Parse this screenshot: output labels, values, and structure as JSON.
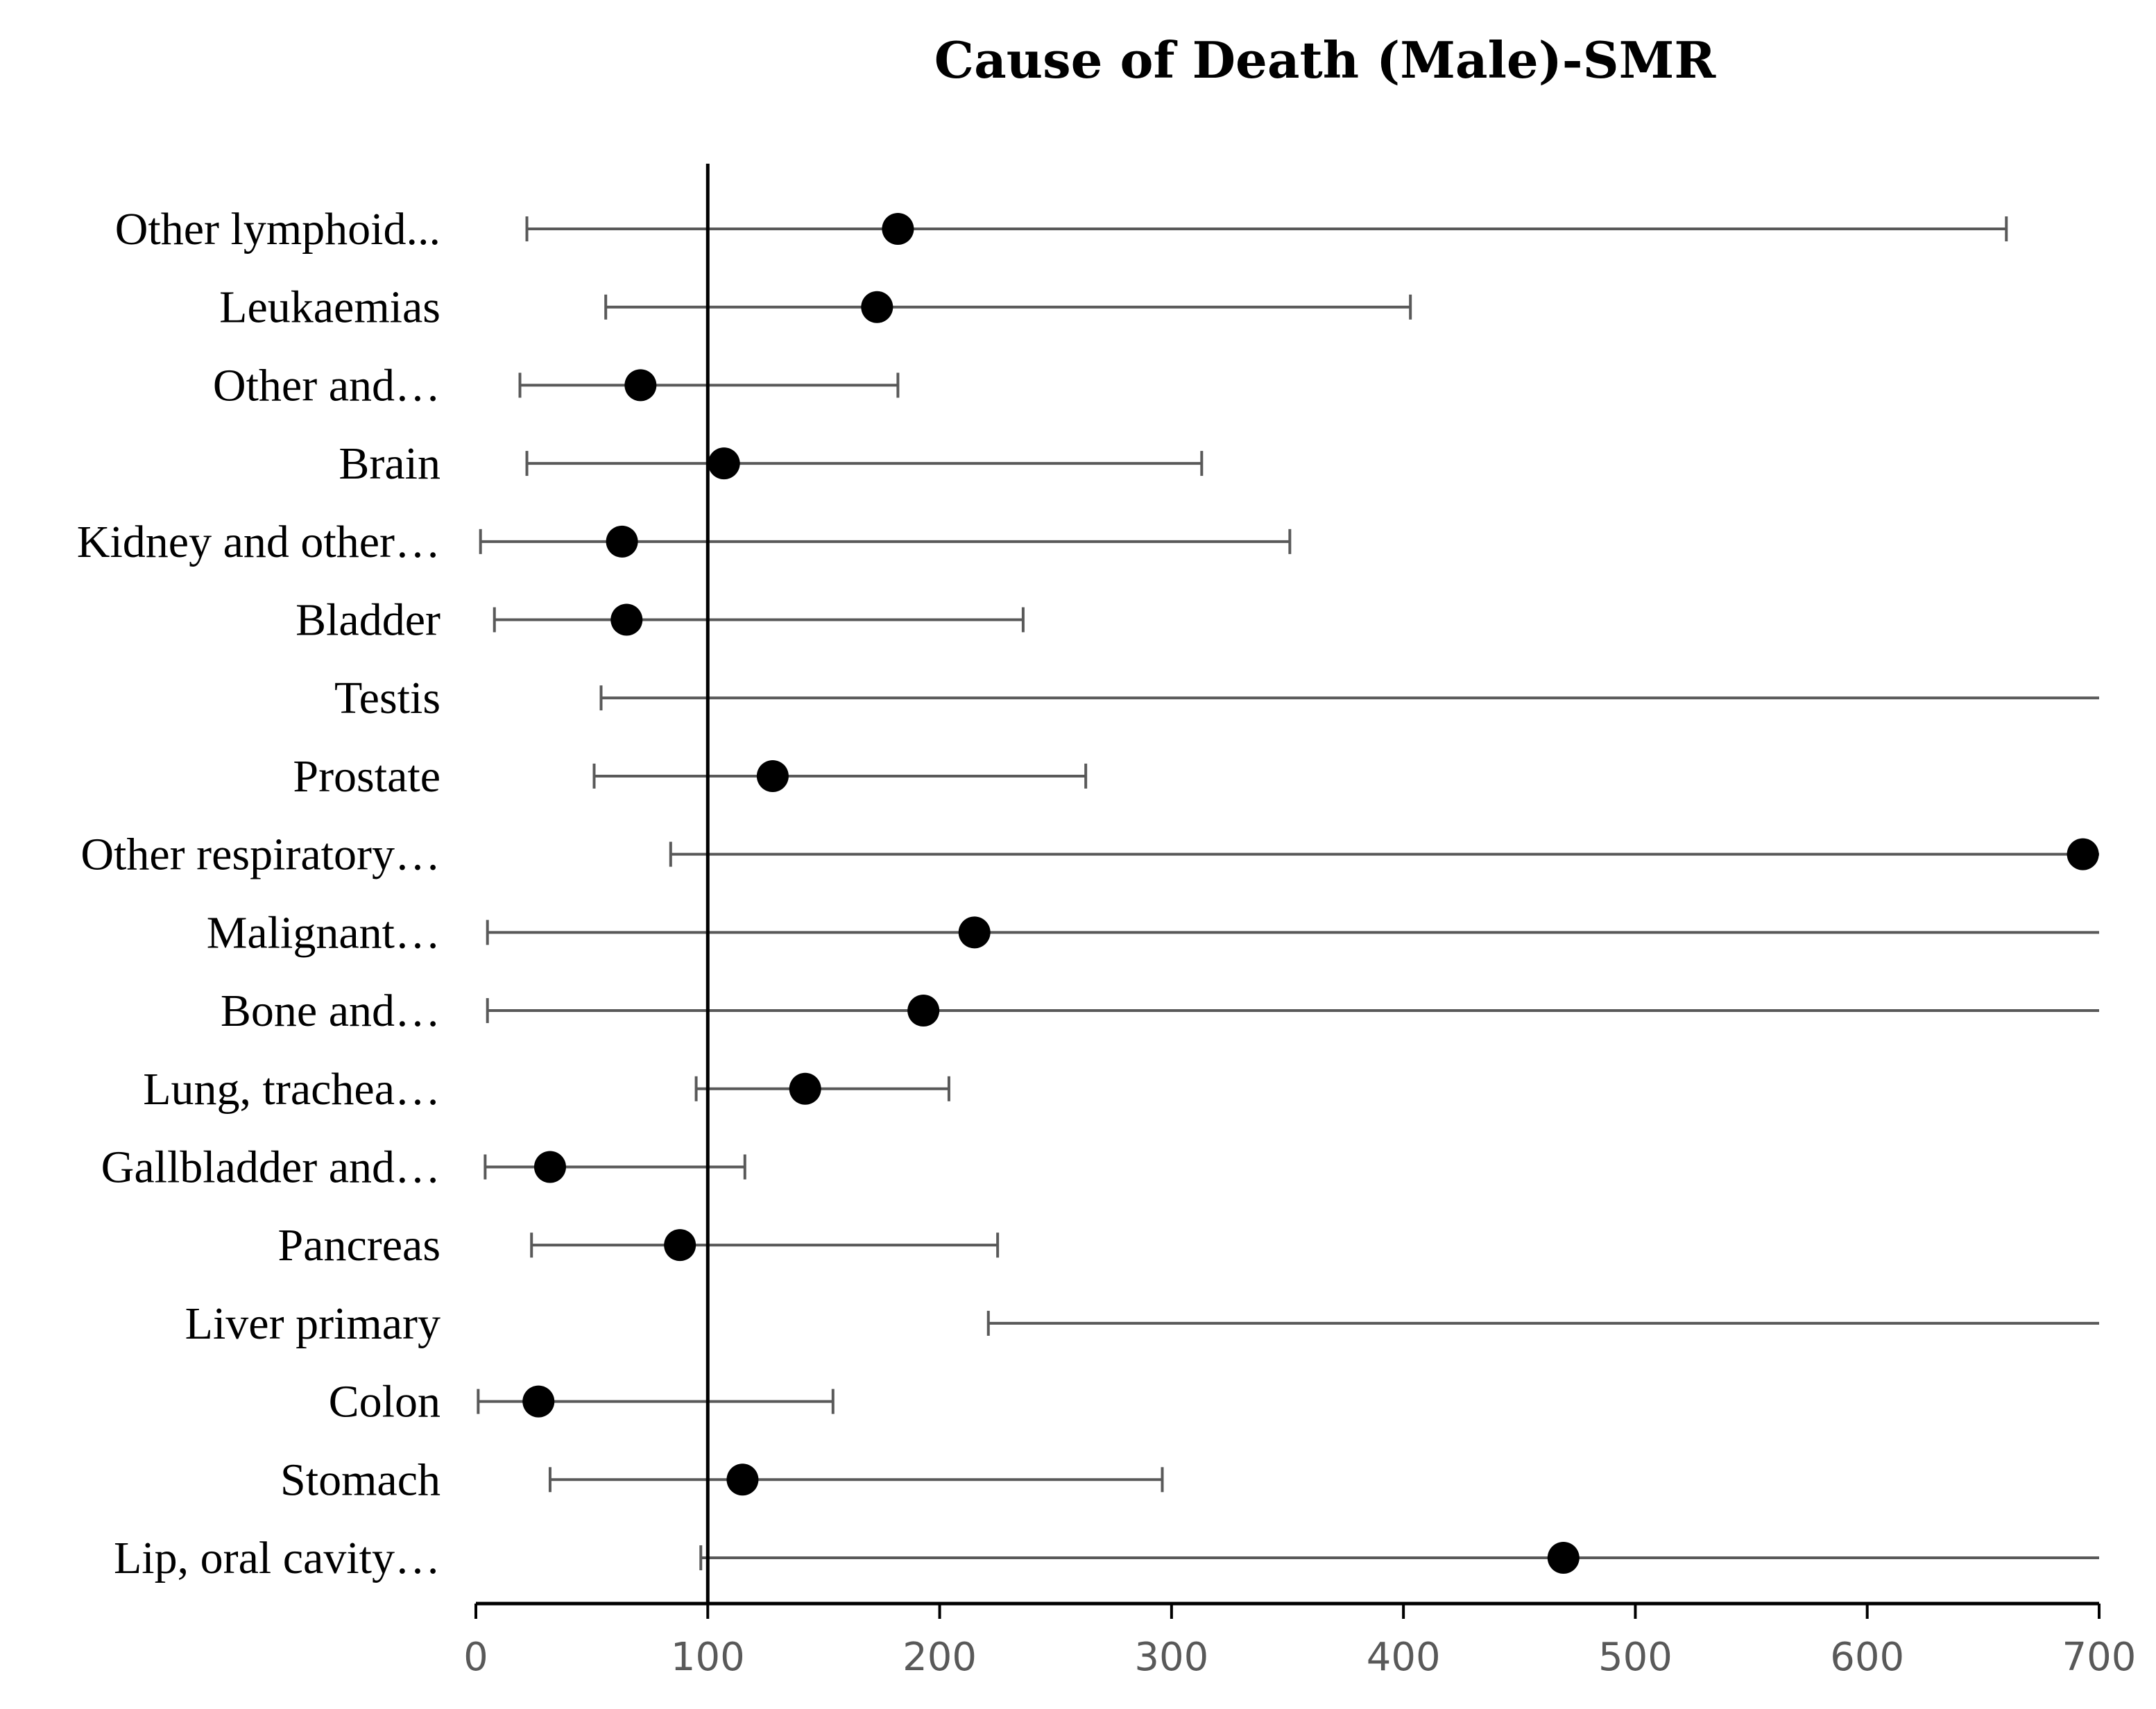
{
  "chart_data": {
    "type": "forest",
    "title": "Cause of Death (Male)-SMR",
    "xlabel": "",
    "ylabel": "",
    "xlim": [
      0,
      700
    ],
    "xticks": [
      0,
      100,
      200,
      300,
      400,
      500,
      600,
      700
    ],
    "reference_line": 100,
    "colors": {
      "ci_line": "#595959",
      "point": "#000000",
      "axis": "#000000",
      "tick_label": "#595959"
    },
    "rows": [
      {
        "label": "Other lymphoid...",
        "smr": 182,
        "lower": 22,
        "upper": 660,
        "upper_clipped": false
      },
      {
        "label": "Leukaemias",
        "smr": 173,
        "lower": 56,
        "upper": 403,
        "upper_clipped": false
      },
      {
        "label": "Other and…",
        "smr": 71,
        "lower": 19,
        "upper": 182,
        "upper_clipped": false
      },
      {
        "label": "Brain",
        "smr": 107,
        "lower": 22,
        "upper": 313,
        "upper_clipped": false
      },
      {
        "label": "Kidney and other…",
        "smr": 63,
        "lower": 2,
        "upper": 351,
        "upper_clipped": false
      },
      {
        "label": "Bladder",
        "smr": 65,
        "lower": 8,
        "upper": 236,
        "upper_clipped": false
      },
      {
        "label": "Testis",
        "smr": null,
        "lower": 54,
        "upper": 700,
        "upper_clipped": true
      },
      {
        "label": "Prostate",
        "smr": 128,
        "lower": 51,
        "upper": 263,
        "upper_clipped": false
      },
      {
        "label": "Other respiratory…",
        "smr": 693,
        "lower": 84,
        "upper": 700,
        "upper_clipped": true
      },
      {
        "label": "Malignant…",
        "smr": 215,
        "lower": 5,
        "upper": 700,
        "upper_clipped": true
      },
      {
        "label": "Bone and…",
        "smr": 193,
        "lower": 5,
        "upper": 700,
        "upper_clipped": true
      },
      {
        "label": "Lung, trachea…",
        "smr": 142,
        "lower": 95,
        "upper": 204,
        "upper_clipped": false
      },
      {
        "label": "Gallbladder and…",
        "smr": 32,
        "lower": 4,
        "upper": 116,
        "upper_clipped": false
      },
      {
        "label": "Pancreas",
        "smr": 88,
        "lower": 24,
        "upper": 225,
        "upper_clipped": false
      },
      {
        "label": "Liver primary",
        "smr": null,
        "lower": 221,
        "upper": 700,
        "upper_clipped": true
      },
      {
        "label": "Colon",
        "smr": 27,
        "lower": 1,
        "upper": 154,
        "upper_clipped": false
      },
      {
        "label": "Stomach",
        "smr": 115,
        "lower": 32,
        "upper": 296,
        "upper_clipped": false
      },
      {
        "label": "Lip, oral cavity…",
        "smr": 469,
        "lower": 97,
        "upper": 700,
        "upper_clipped": true
      }
    ]
  }
}
